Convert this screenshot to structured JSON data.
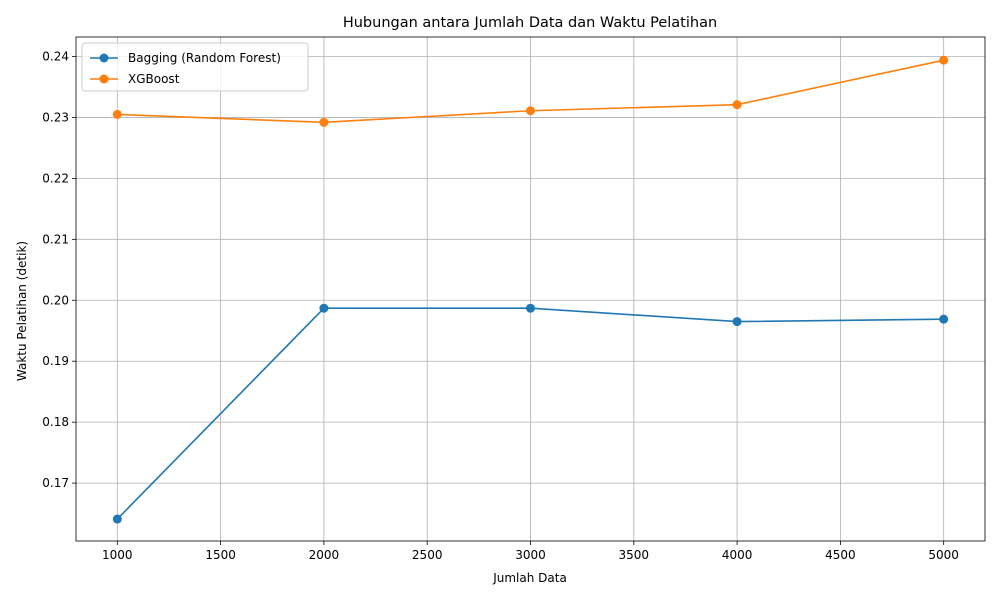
{
  "chart_data": {
    "type": "line",
    "title": "Hubungan antara Jumlah Data dan Waktu Pelatihan",
    "xlabel": "Jumlah Data",
    "ylabel": "Waktu Pelatihan (detik)",
    "x": [
      1000,
      2000,
      3000,
      4000,
      5000
    ],
    "xlim": [
      800,
      5200
    ],
    "ylim": [
      0.1605,
      0.2432
    ],
    "xticks": [
      1000,
      1500,
      2000,
      2500,
      3000,
      3500,
      4000,
      4500,
      5000
    ],
    "xtick_labels": [
      "1000",
      "1500",
      "2000",
      "2500",
      "3000",
      "3500",
      "4000",
      "4500",
      "5000"
    ],
    "yticks": [
      0.17,
      0.18,
      0.19,
      0.2,
      0.21,
      0.22,
      0.23,
      0.24
    ],
    "ytick_labels": [
      "0.17",
      "0.18",
      "0.19",
      "0.20",
      "0.21",
      "0.22",
      "0.23",
      "0.24"
    ],
    "grid": true,
    "legend_position": "top-left",
    "series": [
      {
        "name": "Bagging (Random Forest)",
        "color": "#1f77b4",
        "marker": "circle",
        "values": [
          0.1641,
          0.1987,
          0.1987,
          0.1965,
          0.1969
        ]
      },
      {
        "name": "XGBoost",
        "color": "#ff7f0e",
        "marker": "circle",
        "values": [
          0.2305,
          0.2292,
          0.2311,
          0.2321,
          0.2394
        ]
      }
    ]
  }
}
